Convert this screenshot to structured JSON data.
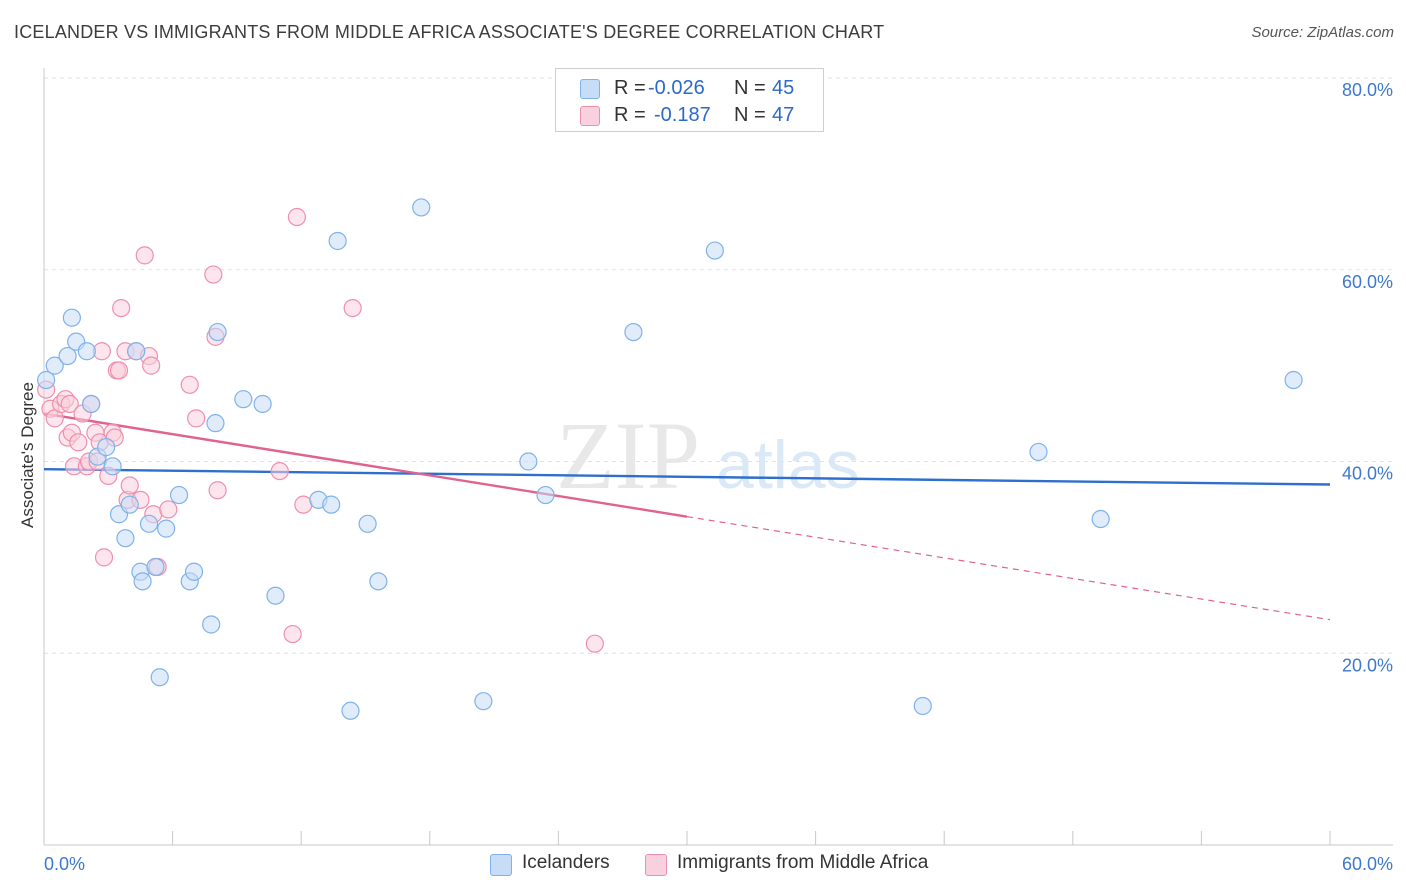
{
  "header": {
    "title": "ICELANDER VS IMMIGRANTS FROM MIDDLE AFRICA ASSOCIATE'S DEGREE CORRELATION CHART",
    "source": "Source: ZipAtlas.com"
  },
  "watermark": {
    "zip": "ZIP",
    "atlas": "atlas"
  },
  "legend": {
    "r_label": "R =",
    "n_label": "N =",
    "rows": [
      {
        "r": "-0.026",
        "n": "45"
      },
      {
        "r": "-0.187",
        "n": "47"
      }
    ]
  },
  "colors": {
    "blue": "#7fb2ec",
    "blue_fill": "#c7dcf6",
    "blue_line": "#2d6fcc",
    "pink": "#ef8fae",
    "pink_fill": "#f9d0dd",
    "pink_line": "#e0628f",
    "axis_text": "#3d78cc",
    "grid": "#e2e2e2"
  },
  "chart_data": {
    "type": "scatter",
    "title": "ICELANDER VS IMMIGRANTS FROM MIDDLE AFRICA ASSOCIATE'S DEGREE CORRELATION CHART",
    "xlabel": "",
    "ylabel": "Associate's Degree",
    "xlim": [
      0,
      60
    ],
    "ylim": [
      0,
      80
    ],
    "x_tick_labels": [
      "0.0%",
      "60.0%"
    ],
    "y_ticks": [
      20,
      40,
      60,
      80
    ],
    "y_tick_labels": [
      "20.0%",
      "40.0%",
      "60.0%",
      "80.0%"
    ],
    "grid": true,
    "legend_position": "bottom",
    "series": [
      {
        "name": "Icelanders",
        "color": "blue",
        "trend": {
          "x0": 0,
          "y0": 39.2,
          "x1": 60,
          "y1": 37.6,
          "solid_to": 60
        },
        "points": [
          [
            0.1,
            48.5
          ],
          [
            0.5,
            50.0
          ],
          [
            1.1,
            51.0
          ],
          [
            1.3,
            55.0
          ],
          [
            1.5,
            52.5
          ],
          [
            2.0,
            51.5
          ],
          [
            2.2,
            46.0
          ],
          [
            2.5,
            40.5
          ],
          [
            2.9,
            41.5
          ],
          [
            3.2,
            39.5
          ],
          [
            3.5,
            34.5
          ],
          [
            3.8,
            32.0
          ],
          [
            4.0,
            35.5
          ],
          [
            4.3,
            51.5
          ],
          [
            4.5,
            28.5
          ],
          [
            4.6,
            27.5
          ],
          [
            4.9,
            33.5
          ],
          [
            5.2,
            29.0
          ],
          [
            5.4,
            17.5
          ],
          [
            5.7,
            33.0
          ],
          [
            6.3,
            36.5
          ],
          [
            6.8,
            27.5
          ],
          [
            7.0,
            28.5
          ],
          [
            7.8,
            23.0
          ],
          [
            8.0,
            44.0
          ],
          [
            8.1,
            53.5
          ],
          [
            9.3,
            46.5
          ],
          [
            10.2,
            46.0
          ],
          [
            10.8,
            26.0
          ],
          [
            12.8,
            36.0
          ],
          [
            13.4,
            35.5
          ],
          [
            13.7,
            63.0
          ],
          [
            14.3,
            14.0
          ],
          [
            15.1,
            33.5
          ],
          [
            15.6,
            27.5
          ],
          [
            17.6,
            66.5
          ],
          [
            20.5,
            15.0
          ],
          [
            22.6,
            40.0
          ],
          [
            23.4,
            36.5
          ],
          [
            27.5,
            53.5
          ],
          [
            31.3,
            62.0
          ],
          [
            41.0,
            14.5
          ],
          [
            46.4,
            41.0
          ],
          [
            49.3,
            34.0
          ],
          [
            58.3,
            48.5
          ]
        ]
      },
      {
        "name": "Immigrants from Middle Africa",
        "color": "pink",
        "trend": {
          "x0": 0,
          "y0": 45.0,
          "x1": 60,
          "y1": 23.5,
          "solid_to": 30
        },
        "points": [
          [
            0.1,
            47.5
          ],
          [
            0.3,
            45.5
          ],
          [
            0.5,
            44.5
          ],
          [
            0.8,
            46.0
          ],
          [
            1.0,
            46.5
          ],
          [
            1.1,
            42.5
          ],
          [
            1.2,
            46.0
          ],
          [
            1.3,
            43.0
          ],
          [
            1.4,
            39.5
          ],
          [
            1.6,
            42.0
          ],
          [
            1.8,
            45.0
          ],
          [
            2.0,
            39.5
          ],
          [
            2.1,
            40.0
          ],
          [
            2.2,
            46.0
          ],
          [
            2.4,
            43.0
          ],
          [
            2.5,
            40.0
          ],
          [
            2.6,
            42.0
          ],
          [
            2.7,
            51.5
          ],
          [
            2.8,
            30.0
          ],
          [
            3.0,
            38.5
          ],
          [
            3.2,
            43.0
          ],
          [
            3.3,
            42.5
          ],
          [
            3.4,
            49.5
          ],
          [
            3.5,
            49.5
          ],
          [
            3.6,
            56.0
          ],
          [
            3.8,
            51.5
          ],
          [
            3.9,
            36.0
          ],
          [
            4.0,
            37.5
          ],
          [
            4.3,
            51.5
          ],
          [
            4.5,
            36.0
          ],
          [
            4.7,
            61.5
          ],
          [
            4.9,
            51.0
          ],
          [
            5.0,
            50.0
          ],
          [
            5.1,
            34.5
          ],
          [
            5.3,
            29.0
          ],
          [
            5.8,
            35.0
          ],
          [
            6.8,
            48.0
          ],
          [
            7.1,
            44.5
          ],
          [
            7.9,
            59.5
          ],
          [
            8.0,
            53.0
          ],
          [
            8.1,
            37.0
          ],
          [
            11.0,
            39.0
          ],
          [
            11.6,
            22.0
          ],
          [
            11.8,
            65.5
          ],
          [
            12.1,
            35.5
          ],
          [
            14.4,
            56.0
          ],
          [
            25.7,
            21.0
          ]
        ]
      }
    ]
  }
}
